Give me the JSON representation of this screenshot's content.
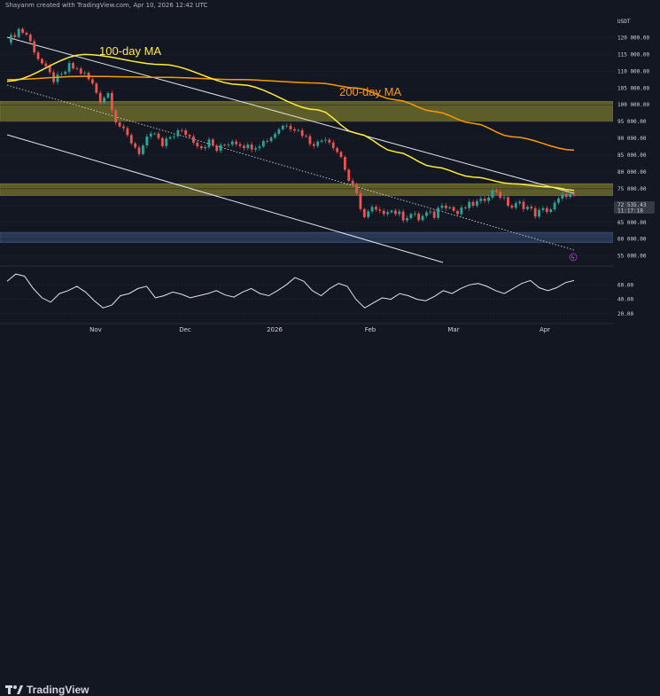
{
  "header": {
    "text": "Shayanm created with TradingView.com, Apr 10, 2026 12:42 UTC"
  },
  "branding": {
    "logo_text": "TradingView"
  },
  "colors": {
    "background": "#131722",
    "up": "#26a69a",
    "down": "#ef5350",
    "ma100": "#ffeb3b",
    "ma200": "#ff9800",
    "zone_yellow": "#6b6a2c",
    "zone_blue": "#2d3f5e",
    "rsi": "#e0e3eb"
  },
  "chart_data": {
    "type": "candlestick",
    "currency": "USDT",
    "price_tag": {
      "value": "72 535.43",
      "countdown": "11:17:18"
    },
    "y_ticks": [
      "120 000.00",
      "115 000.00",
      "110 000.00",
      "105 000.00",
      "100 000.00",
      "95 000.00",
      "90 000.00",
      "85 000.00",
      "80 000.00",
      "75 000.00",
      "70 000.00",
      "65 000.00",
      "60 000.00",
      "55 000.00"
    ],
    "x_ticks": [
      "Nov",
      "Dec",
      "2026",
      "Feb",
      "Mar",
      "Apr"
    ],
    "ylim": [
      52000,
      127000
    ],
    "annotations": [
      {
        "text": "100-day MA",
        "color": "#ffeb3b"
      },
      {
        "text": "200-day MA",
        "color": "#ff9800"
      }
    ],
    "zones": [
      {
        "from": 95000,
        "to": 101000,
        "color": "#6b6a2c"
      },
      {
        "from": 73000,
        "to": 76500,
        "color": "#6b6a2c"
      },
      {
        "from": 59000,
        "to": 62000,
        "color": "#2d3f5e"
      }
    ],
    "close_path": [
      [
        0,
        118500
      ],
      [
        3,
        122500
      ],
      [
        5,
        121000
      ],
      [
        8,
        114000
      ],
      [
        10,
        110500
      ],
      [
        12,
        107500
      ],
      [
        14,
        108500
      ],
      [
        16,
        111500
      ],
      [
        18,
        110500
      ],
      [
        20,
        109000
      ],
      [
        22,
        106000
      ],
      [
        24,
        101500
      ],
      [
        26,
        103500
      ],
      [
        28,
        95500
      ],
      [
        30,
        92000
      ],
      [
        32,
        89000
      ],
      [
        34,
        86000
      ],
      [
        36,
        89500
      ],
      [
        38,
        91500
      ],
      [
        40,
        87500
      ],
      [
        42,
        90500
      ],
      [
        44,
        92000
      ],
      [
        46,
        91500
      ],
      [
        48,
        89500
      ],
      [
        50,
        87500
      ],
      [
        52,
        89000
      ],
      [
        54,
        86500
      ],
      [
        56,
        88000
      ],
      [
        58,
        89500
      ],
      [
        60,
        88500
      ],
      [
        62,
        87500
      ],
      [
        64,
        88000
      ],
      [
        66,
        89000
      ],
      [
        68,
        90500
      ],
      [
        70,
        93000
      ],
      [
        72,
        94500
      ],
      [
        74,
        93000
      ],
      [
        76,
        91500
      ],
      [
        78,
        89000
      ],
      [
        80,
        88500
      ],
      [
        82,
        90500
      ],
      [
        84,
        88000
      ],
      [
        86,
        84500
      ],
      [
        88,
        77500
      ],
      [
        90,
        73000
      ],
      [
        92,
        66500
      ],
      [
        94,
        69000
      ],
      [
        96,
        67500
      ],
      [
        98,
        69000
      ],
      [
        100,
        68000
      ],
      [
        102,
        66500
      ],
      [
        104,
        67500
      ],
      [
        106,
        66000
      ],
      [
        108,
        67500
      ],
      [
        110,
        67000
      ],
      [
        112,
        71000
      ],
      [
        114,
        69500
      ],
      [
        116,
        67500
      ],
      [
        118,
        69500
      ],
      [
        120,
        70500
      ],
      [
        122,
        71000
      ],
      [
        124,
        73500
      ],
      [
        126,
        74500
      ],
      [
        128,
        71500
      ],
      [
        130,
        69500
      ],
      [
        132,
        70500
      ],
      [
        134,
        69500
      ],
      [
        136,
        67500
      ],
      [
        138,
        68500
      ],
      [
        140,
        69000
      ],
      [
        142,
        71500
      ],
      [
        144,
        73500
      ],
      [
        146,
        72535
      ]
    ],
    "ma100": [
      [
        0,
        107000
      ],
      [
        20,
        115000
      ],
      [
        40,
        112000
      ],
      [
        60,
        106000
      ],
      [
        80,
        98500
      ],
      [
        90,
        91500
      ],
      [
        100,
        86000
      ],
      [
        110,
        81500
      ],
      [
        120,
        78500
      ],
      [
        130,
        76500
      ],
      [
        140,
        75500
      ],
      [
        146,
        74500
      ]
    ],
    "ma200": [
      [
        0,
        107500
      ],
      [
        20,
        108500
      ],
      [
        40,
        108200
      ],
      [
        60,
        107500
      ],
      [
        80,
        106500
      ],
      [
        90,
        105000
      ],
      [
        100,
        101500
      ],
      [
        110,
        98000
      ],
      [
        120,
        94500
      ],
      [
        130,
        90500
      ],
      [
        146,
        86500
      ]
    ],
    "rsi": {
      "ticks": [
        "60.00",
        "40.00",
        "20.00"
      ],
      "values": [
        65,
        75,
        72,
        55,
        42,
        36,
        48,
        52,
        58,
        50,
        38,
        28,
        32,
        45,
        48,
        55,
        58,
        42,
        45,
        50,
        47,
        42,
        45,
        48,
        52,
        46,
        43,
        50,
        55,
        48,
        45,
        52,
        60,
        70,
        65,
        52,
        45,
        55,
        62,
        58,
        40,
        28,
        35,
        42,
        40,
        48,
        45,
        40,
        38,
        44,
        52,
        48,
        55,
        60,
        62,
        58,
        52,
        48,
        55,
        62,
        66,
        56,
        52,
        56,
        63,
        66
      ]
    }
  }
}
